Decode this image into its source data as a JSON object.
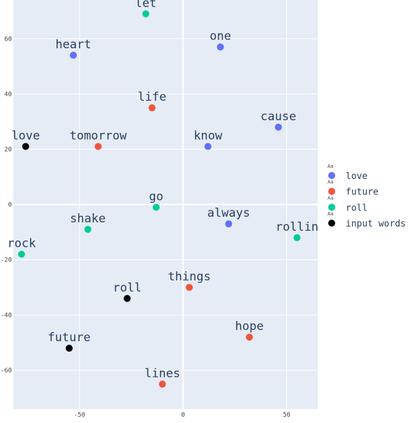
{
  "chart_data": {
    "type": "scatter",
    "xlim": [
      -82,
      65
    ],
    "ylim": [
      -74,
      74
    ],
    "x_ticks": [
      -50,
      0,
      50
    ],
    "y_ticks": [
      -60,
      -40,
      -20,
      0,
      20,
      40,
      60
    ],
    "x_tick_labels": [
      "-50",
      "0",
      "50"
    ],
    "y_tick_labels": [
      "-60",
      "-40",
      "-20",
      "0",
      "20",
      "40",
      "60"
    ],
    "grid": true,
    "legend_placement": "right",
    "legend_marker_text": "Aa",
    "plot_background": "#e5ecf6",
    "grid_color": "#ffffff",
    "series": [
      {
        "name": "love",
        "color": "#636efa",
        "points": [
          {
            "label": "heart",
            "x": -53,
            "y": 54
          },
          {
            "label": "one",
            "x": 18,
            "y": 57
          },
          {
            "label": "cause",
            "x": 46,
            "y": 28
          },
          {
            "label": "know",
            "x": 12,
            "y": 21
          },
          {
            "label": "always",
            "x": 22,
            "y": -7
          }
        ]
      },
      {
        "name": "future",
        "color": "#ef553b",
        "points": [
          {
            "label": "life",
            "x": -15,
            "y": 35
          },
          {
            "label": "tomorrow",
            "x": -41,
            "y": 21
          },
          {
            "label": "things",
            "x": 3,
            "y": -30
          },
          {
            "label": "hope",
            "x": 32,
            "y": -48
          },
          {
            "label": "lines",
            "x": -10,
            "y": -65
          }
        ]
      },
      {
        "name": "roll",
        "color": "#00cc96",
        "points": [
          {
            "label": "let",
            "x": -18,
            "y": 69
          },
          {
            "label": "go",
            "x": -13,
            "y": -1
          },
          {
            "label": "shake",
            "x": -46,
            "y": -9
          },
          {
            "label": "rock",
            "x": -78,
            "y": -18
          },
          {
            "label": "rollin",
            "x": 55,
            "y": -12
          }
        ]
      },
      {
        "name": "input words",
        "color": "#000000",
        "points": [
          {
            "label": "love",
            "x": -76,
            "y": 21
          },
          {
            "label": "roll",
            "x": -27,
            "y": -34
          },
          {
            "label": "future",
            "x": -55,
            "y": -52
          }
        ]
      }
    ]
  }
}
